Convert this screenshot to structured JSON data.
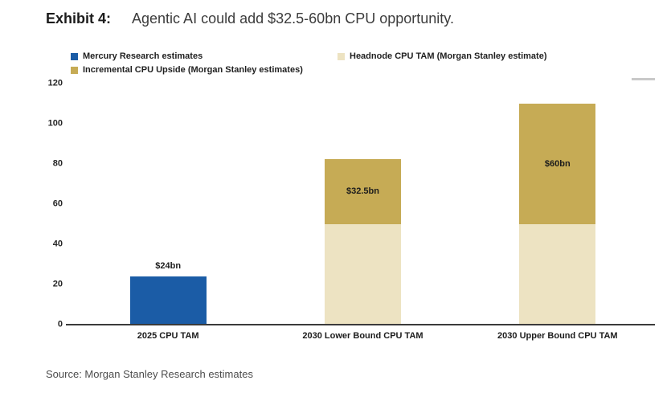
{
  "page": {
    "background": "#FFFFFF"
  },
  "header": {
    "exhibit_label": "Exhibit 4:",
    "title": "Agentic AI could add $32.5-60bn CPU opportunity."
  },
  "legend": {
    "items": [
      {
        "label": "Mercury Research estimates",
        "color": "#1B5CA6"
      },
      {
        "label": "Headnode CPU TAM (Morgan Stanley estimate)",
        "color": "#EDE3C2"
      },
      {
        "label": "Incremental CPU Upside (Morgan Stanley estimates)",
        "color": "#C6AB55"
      }
    ]
  },
  "chart_data": {
    "type": "bar",
    "stacked": true,
    "title": "Agentic AI could add $32.5-60bn CPU opportunity.",
    "categories": [
      "2025 CPU TAM",
      "2030 Lower Bound CPU TAM",
      "2030 Upper Bound CPU TAM"
    ],
    "series": [
      {
        "name": "Mercury Research estimates",
        "color": "#1B5CA6",
        "values": [
          24,
          0,
          0
        ]
      },
      {
        "name": "Headnode CPU TAM (Morgan Stanley estimate)",
        "color": "#EDE3C2",
        "values": [
          0,
          50,
          50
        ]
      },
      {
        "name": "Incremental CPU Upside (Morgan Stanley estimates)",
        "color": "#C6AB55",
        "values": [
          0,
          32.5,
          60
        ]
      }
    ],
    "totals": [
      24,
      82.5,
      110
    ],
    "bar_labels": [
      {
        "bar": 0,
        "text": "$24bn",
        "placement": "above"
      },
      {
        "bar": 1,
        "text": "$32.5bn",
        "placement": "top-segment-center"
      },
      {
        "bar": 2,
        "text": "$60bn",
        "placement": "top-segment-center"
      }
    ],
    "ylim": [
      0,
      120
    ],
    "yticks": [
      0,
      20,
      40,
      60,
      80,
      100,
      120
    ],
    "legend_position": "top",
    "grid": false
  },
  "source": {
    "text": "Source: Morgan Stanley Research estimates"
  }
}
